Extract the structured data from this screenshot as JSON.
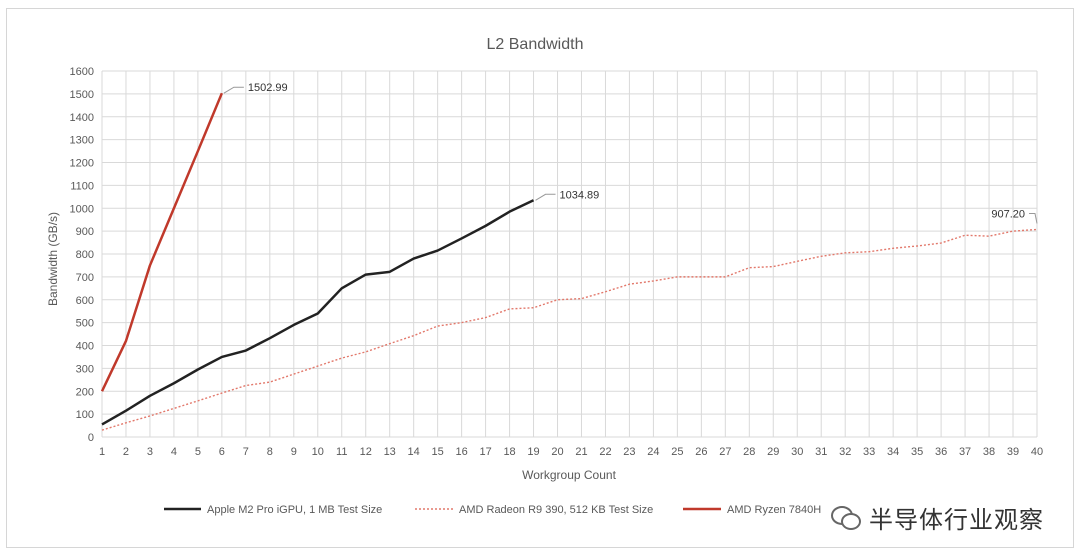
{
  "chart_data": {
    "type": "line",
    "title": "L2 Bandwidth",
    "xlabel": "Workgroup Count",
    "ylabel": "Bandwidth (GB/s)",
    "xlim": [
      1,
      40
    ],
    "ylim": [
      0,
      1600
    ],
    "x_ticks": [
      1,
      2,
      3,
      4,
      5,
      6,
      7,
      8,
      9,
      10,
      11,
      12,
      13,
      14,
      15,
      16,
      17,
      18,
      19,
      20,
      21,
      22,
      23,
      24,
      25,
      26,
      27,
      28,
      29,
      30,
      31,
      32,
      33,
      34,
      35,
      36,
      37,
      38,
      39,
      40
    ],
    "y_ticks": [
      0,
      100,
      200,
      300,
      400,
      500,
      600,
      700,
      800,
      900,
      1000,
      1100,
      1200,
      1300,
      1400,
      1500,
      1600
    ],
    "grid": true,
    "legend_position": "bottom",
    "series": [
      {
        "name": "Apple M2 Pro iGPU, 1 MB Test Size",
        "color": "#222222",
        "style": "solid",
        "x": [
          1,
          2,
          3,
          4,
          5,
          6,
          7,
          8,
          9,
          10,
          11,
          12,
          13,
          14,
          15,
          16,
          17,
          18,
          19
        ],
        "values": [
          55,
          115,
          180,
          235,
          295,
          350,
          378,
          432,
          490,
          540,
          650,
          710,
          722,
          780,
          815,
          868,
          923,
          985,
          1034.89
        ],
        "end_label": "1034.89"
      },
      {
        "name": "AMD Radeon R9 390, 512 KB Test Size",
        "color": "#e2786b",
        "style": "dotted",
        "x": [
          1,
          2,
          3,
          4,
          5,
          6,
          7,
          8,
          9,
          10,
          11,
          12,
          13,
          14,
          15,
          16,
          17,
          18,
          19,
          20,
          21,
          22,
          23,
          24,
          25,
          26,
          27,
          28,
          29,
          30,
          31,
          32,
          33,
          34,
          35,
          36,
          37,
          38,
          39,
          40
        ],
        "values": [
          30,
          62,
          92,
          125,
          158,
          192,
          225,
          240,
          275,
          310,
          345,
          372,
          408,
          443,
          485,
          500,
          522,
          560,
          565,
          600,
          605,
          635,
          668,
          682,
          700,
          700,
          700,
          740,
          745,
          768,
          790,
          805,
          810,
          825,
          835,
          848,
          882,
          878,
          900,
          907.2
        ],
        "end_label": "907.20"
      },
      {
        "name": "AMD Ryzen 7840H",
        "color": "#c0392b",
        "style": "solid",
        "x": [
          1,
          2,
          3,
          4,
          5,
          6
        ],
        "values": [
          200,
          420,
          750,
          1000,
          1250,
          1502.99
        ],
        "end_label": "1502.99"
      }
    ]
  },
  "legend_items": [
    {
      "label": "Apple M2 Pro iGPU, 1 MB Test Size"
    },
    {
      "label": "AMD Radeon R9 390, 512 KB Test Size"
    },
    {
      "label": "AMD Ryzen 7840H"
    }
  ],
  "watermark": {
    "text": "半导体行业观察",
    "icon": "wechat-icon"
  }
}
